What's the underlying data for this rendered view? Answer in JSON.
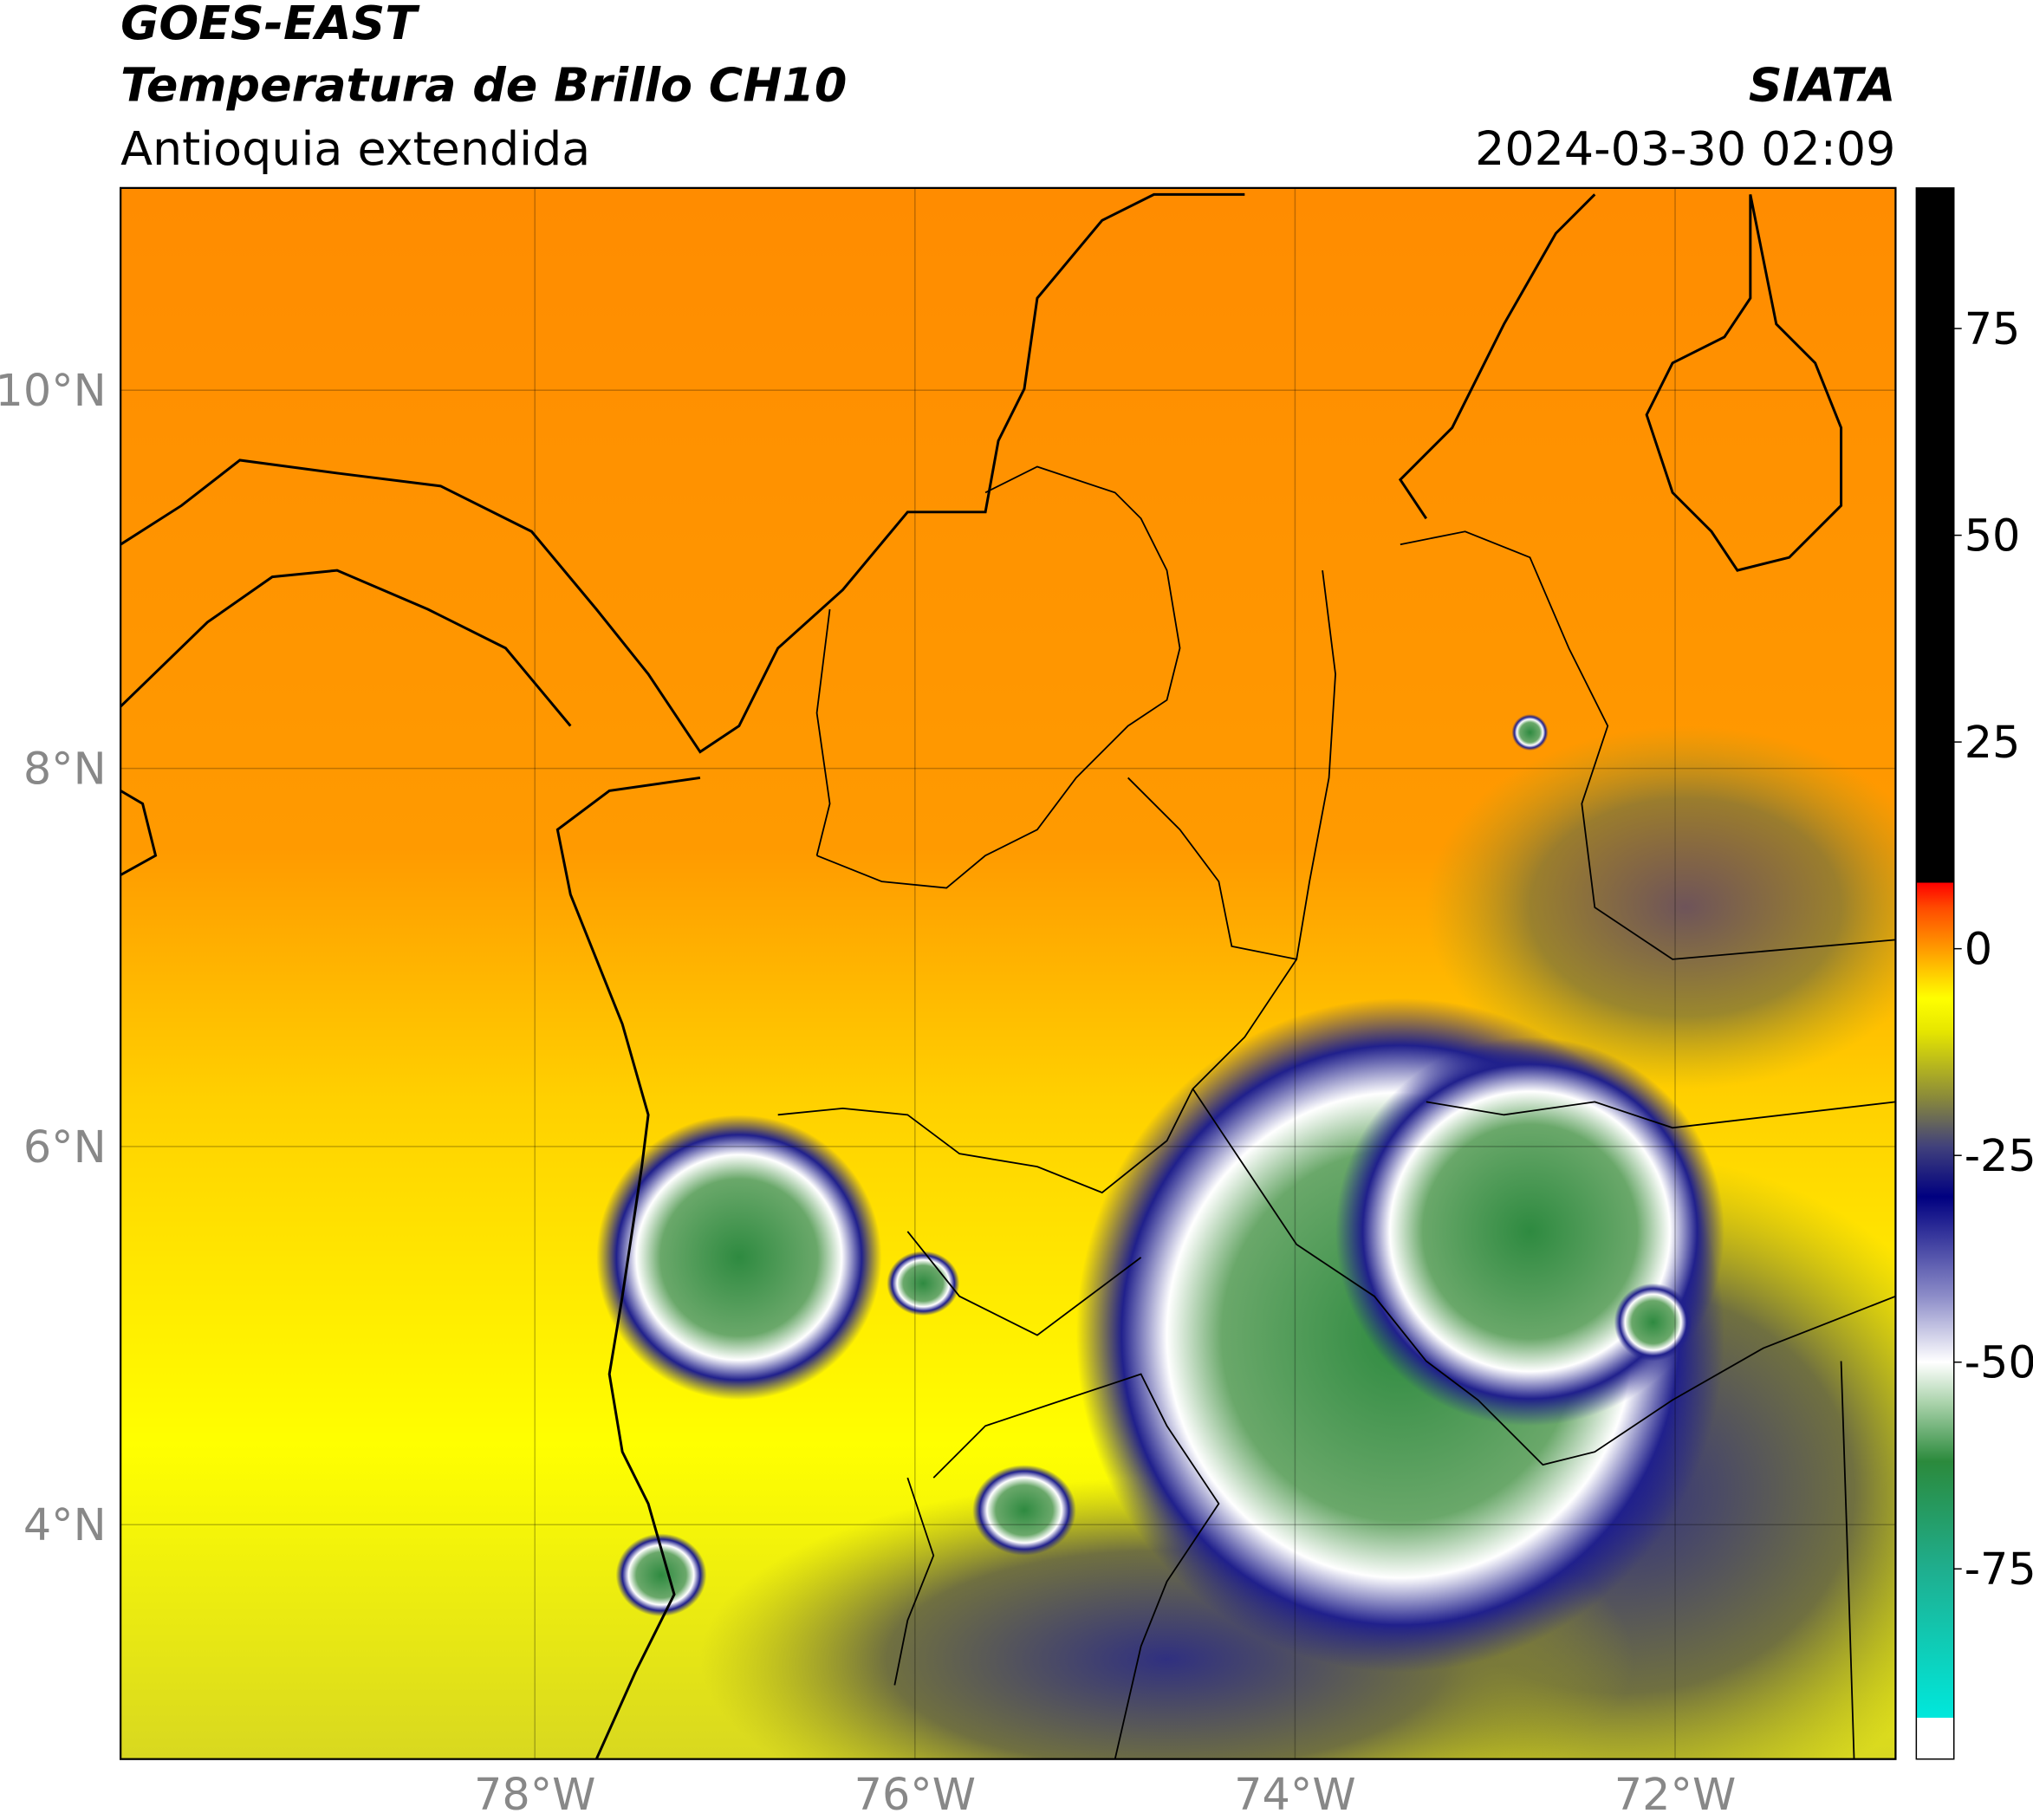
{
  "header": {
    "title": "GOES-EAST",
    "subtitle": "Temperatura de Brillo CH10",
    "region": "Antioquia extendida",
    "source": "SIATA",
    "datetime": "2024-03-30 02:09"
  },
  "map": {
    "xlim": [
      -80.18,
      -70.84
    ],
    "ylim": [
      2.76,
      11.07
    ],
    "xticks": [
      {
        "value": -78,
        "label": "78°W"
      },
      {
        "value": -76,
        "label": "76°W"
      },
      {
        "value": -74,
        "label": "74°W"
      },
      {
        "value": -72,
        "label": "72°W"
      }
    ],
    "yticks": [
      {
        "value": 10,
        "label": "10°N"
      },
      {
        "value": 8,
        "label": "8°N"
      },
      {
        "value": 6,
        "label": "6°N"
      },
      {
        "value": 4,
        "label": "4°N"
      }
    ],
    "grid": true
  },
  "colorbar": {
    "ylim": [
      -98,
      92
    ],
    "yticks": [
      75,
      50,
      25,
      0,
      -25,
      -50,
      -75
    ],
    "stops": [
      {
        "value": -98,
        "color": "#ffffff"
      },
      {
        "value": -93,
        "color": "#ffffff"
      },
      {
        "value": -93,
        "color": "#00e8dc"
      },
      {
        "value": -75,
        "color": "#1fae8e"
      },
      {
        "value": -62,
        "color": "#2b8a3c"
      },
      {
        "value": -55,
        "color": "#a9d2aa"
      },
      {
        "value": -50,
        "color": "#ffffff"
      },
      {
        "value": -42,
        "color": "#8c8cc8"
      },
      {
        "value": -30,
        "color": "#000080"
      },
      {
        "value": -24,
        "color": "#40407c"
      },
      {
        "value": -18,
        "color": "#8a8a3a"
      },
      {
        "value": -10,
        "color": "#e6e600"
      },
      {
        "value": -6,
        "color": "#ffff00"
      },
      {
        "value": 0,
        "color": "#ff9a00"
      },
      {
        "value": 5,
        "color": "#ff4a00"
      },
      {
        "value": 8,
        "color": "#ff0000"
      },
      {
        "value": 8,
        "color": "#000000"
      },
      {
        "value": 92,
        "color": "#000000"
      }
    ]
  }
}
